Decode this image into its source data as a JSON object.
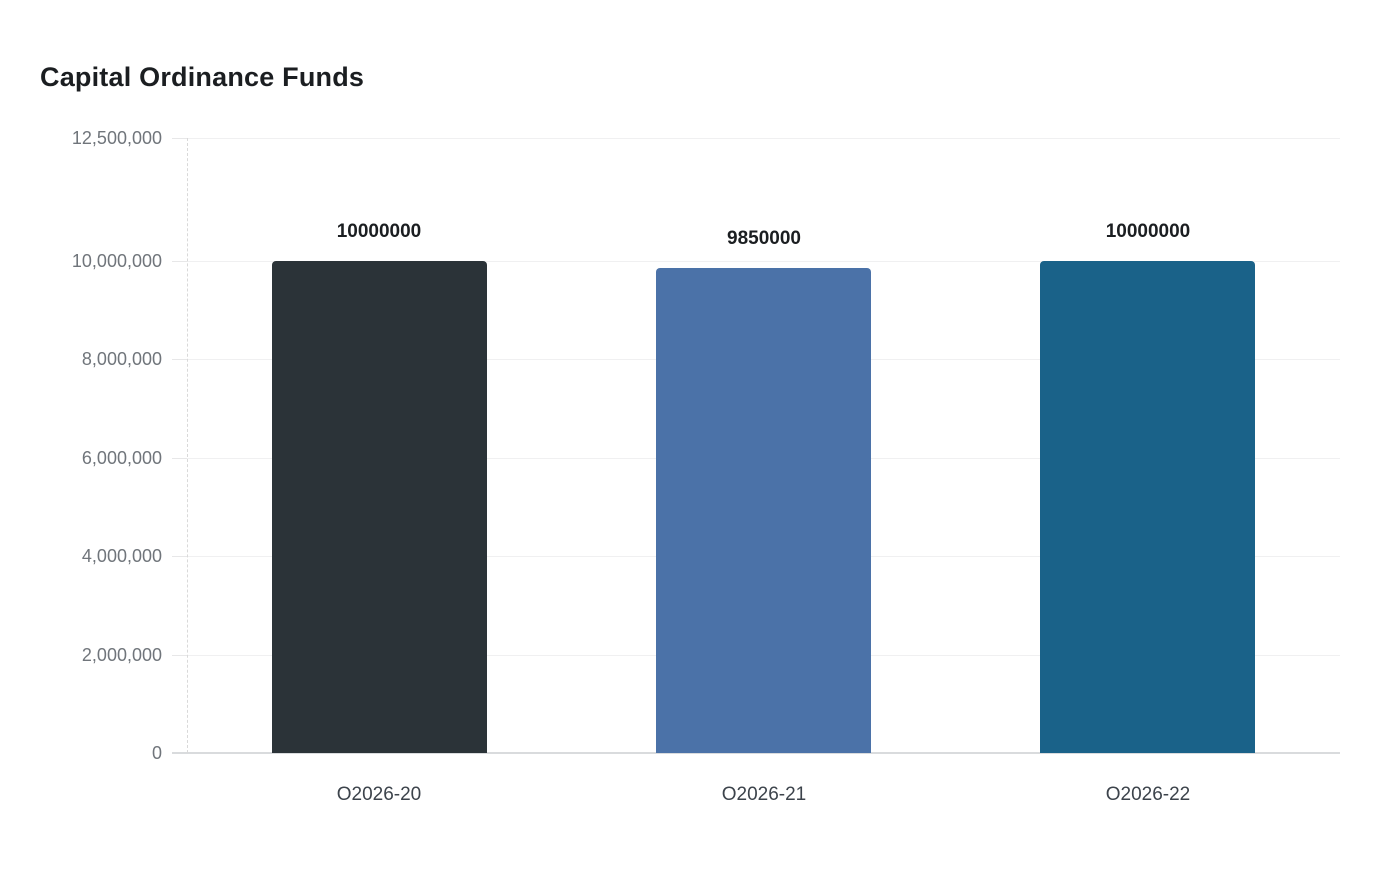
{
  "chart_data": {
    "type": "bar",
    "title": "Capital Ordinance Funds",
    "categories": [
      "O2026-20",
      "O2026-21",
      "O2026-22"
    ],
    "values": [
      10000000,
      9850000,
      10000000
    ],
    "value_labels": [
      "10000000",
      "9850000",
      "10000000"
    ],
    "bar_colors": [
      "#2b3338",
      "#4b72a8",
      "#1a6289"
    ],
    "y_ticks": [
      {
        "value": 0,
        "label": "0"
      },
      {
        "value": 2000000,
        "label": "2,000,000"
      },
      {
        "value": 4000000,
        "label": "4,000,000"
      },
      {
        "value": 6000000,
        "label": "6,000,000"
      },
      {
        "value": 8000000,
        "label": "8,000,000"
      },
      {
        "value": 10000000,
        "label": "10,000,000"
      },
      {
        "value": 12500000,
        "label": "12,500,000"
      }
    ],
    "ylim": [
      0,
      12500000
    ],
    "xlabel": "",
    "ylabel": "",
    "grid": true,
    "legend_position": "none"
  },
  "colors": {
    "background": "#ffffff",
    "title": "#1b1e21",
    "grid_line": "#f0f0f1",
    "baseline": "#d9dbdd",
    "axis_dashed_line": "#d9d9d9",
    "y_tick_label": "#70757b",
    "x_tick_label": "#3c434b",
    "value_label": "#1b1e21",
    "bar_1": "#2b3338",
    "bar_2": "#4b72a8",
    "bar_3": "#1a6289"
  }
}
